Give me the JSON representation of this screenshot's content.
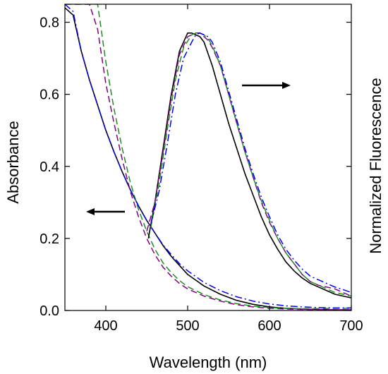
{
  "chart_data": {
    "type": "line",
    "title": "",
    "xlabel": "Wavelength (nm)",
    "ylabel": "Absorbance",
    "ylabel_right": "Normalized Fluorescence",
    "xlim": [
      350,
      700
    ],
    "ylim": [
      0,
      0.85
    ],
    "x_ticks": [
      400,
      500,
      600,
      700
    ],
    "x_tick_labels": [
      "400",
      "500",
      "600",
      "700"
    ],
    "y_ticks": [
      0.0,
      0.2,
      0.4,
      0.6,
      0.8
    ],
    "y_tick_labels": [
      "0.0",
      "0.2",
      "0.4",
      "0.6",
      "0.8"
    ],
    "grid": false,
    "legend": "none",
    "annotations": [
      {
        "type": "arrow",
        "direction": "left",
        "meaning": "absorbance curves refer to left axis"
      },
      {
        "type": "arrow",
        "direction": "right",
        "meaning": "fluorescence curves refer to right axis"
      }
    ],
    "series": [
      {
        "group": "absorbance",
        "color": "#000000",
        "dash": "solid",
        "x": [
          350,
          360,
          370,
          380,
          390,
          400,
          410,
          420,
          430,
          440,
          450,
          460,
          470,
          480,
          490,
          500,
          520,
          540,
          560,
          580,
          600,
          620,
          640,
          660,
          680,
          700
        ],
        "y": [
          0.84,
          0.82,
          0.72,
          0.64,
          0.57,
          0.5,
          0.44,
          0.385,
          0.335,
          0.29,
          0.25,
          0.215,
          0.18,
          0.15,
          0.125,
          0.1,
          0.068,
          0.045,
          0.028,
          0.017,
          0.01,
          0.006,
          0.004,
          0.003,
          0.002,
          0.002
        ]
      },
      {
        "group": "absorbance",
        "color": "#800080",
        "dash": "dashed",
        "x": [
          350,
          360,
          370,
          380,
          390,
          400,
          410,
          420,
          430,
          440,
          450,
          460,
          470,
          480,
          490,
          500,
          520,
          540,
          560,
          580,
          600,
          620,
          640,
          660,
          680,
          700
        ],
        "y": [
          0.85,
          0.85,
          0.85,
          0.85,
          0.78,
          0.63,
          0.52,
          0.42,
          0.33,
          0.26,
          0.2,
          0.155,
          0.12,
          0.095,
          0.075,
          0.06,
          0.04,
          0.026,
          0.016,
          0.01,
          0.006,
          0.004,
          0.003,
          0.002,
          0.002,
          0.002
        ]
      },
      {
        "group": "absorbance",
        "color": "#228B22",
        "dash": "dashed",
        "x": [
          350,
          360,
          370,
          380,
          390,
          400,
          410,
          420,
          430,
          440,
          450,
          460,
          470,
          480,
          490,
          500,
          520,
          540,
          560,
          580,
          600,
          620,
          640,
          660,
          680,
          700
        ],
        "y": [
          0.85,
          0.85,
          0.85,
          0.85,
          0.85,
          0.69,
          0.56,
          0.45,
          0.355,
          0.28,
          0.22,
          0.17,
          0.132,
          0.105,
          0.083,
          0.066,
          0.044,
          0.029,
          0.019,
          0.012,
          0.008,
          0.006,
          0.005,
          0.005,
          0.006,
          0.006
        ]
      },
      {
        "group": "absorbance",
        "color": "#0000EE",
        "dash": "dashdot",
        "x": [
          350,
          360,
          370,
          380,
          390,
          400,
          410,
          420,
          430,
          440,
          450,
          460,
          470,
          480,
          490,
          500,
          520,
          540,
          560,
          580,
          600,
          620,
          640,
          660,
          680,
          700
        ],
        "y": [
          0.85,
          0.83,
          0.72,
          0.64,
          0.57,
          0.5,
          0.44,
          0.385,
          0.335,
          0.29,
          0.25,
          0.215,
          0.182,
          0.155,
          0.13,
          0.11,
          0.078,
          0.055,
          0.038,
          0.026,
          0.018,
          0.013,
          0.01,
          0.008,
          0.007,
          0.007
        ]
      },
      {
        "group": "fluorescence",
        "color": "#000000",
        "dash": "solid",
        "x": [
          452,
          460,
          470,
          480,
          490,
          500,
          505,
          510,
          515,
          520,
          530,
          540,
          550,
          560,
          570,
          580,
          590,
          600,
          610,
          620,
          630,
          640,
          650,
          660,
          670,
          680,
          690,
          700
        ],
        "y": [
          0.2,
          0.3,
          0.45,
          0.6,
          0.72,
          0.77,
          0.77,
          0.765,
          0.76,
          0.745,
          0.68,
          0.6,
          0.52,
          0.45,
          0.38,
          0.32,
          0.26,
          0.21,
          0.17,
          0.135,
          0.11,
          0.09,
          0.075,
          0.065,
          0.055,
          0.045,
          0.04,
          0.035
        ]
      },
      {
        "group": "fluorescence",
        "color": "#800080",
        "dash": "dashed",
        "x": [
          450,
          460,
          470,
          480,
          490,
          500,
          510,
          515,
          520,
          525,
          530,
          540,
          550,
          560,
          570,
          580,
          590,
          600,
          610,
          620,
          630,
          640,
          650,
          660,
          670,
          680,
          690,
          700
        ],
        "y": [
          0.22,
          0.3,
          0.44,
          0.59,
          0.71,
          0.76,
          0.77,
          0.77,
          0.76,
          0.75,
          0.73,
          0.68,
          0.6,
          0.52,
          0.44,
          0.37,
          0.3,
          0.245,
          0.2,
          0.16,
          0.13,
          0.1,
          0.08,
          0.07,
          0.065,
          0.06,
          0.05,
          0.04
        ]
      },
      {
        "group": "fluorescence",
        "color": "#228B22",
        "dash": "dashed",
        "x": [
          455,
          465,
          475,
          485,
          495,
          505,
          510,
          515,
          520,
          525,
          530,
          540,
          550,
          560,
          570,
          580,
          590,
          600,
          610,
          620,
          630,
          640,
          650,
          660,
          670,
          680,
          690,
          700
        ],
        "y": [
          0.23,
          0.35,
          0.5,
          0.64,
          0.73,
          0.765,
          0.77,
          0.77,
          0.765,
          0.755,
          0.735,
          0.68,
          0.6,
          0.52,
          0.44,
          0.37,
          0.305,
          0.25,
          0.2,
          0.16,
          0.13,
          0.1,
          0.08,
          0.07,
          0.06,
          0.05,
          0.045,
          0.04
        ]
      },
      {
        "group": "fluorescence",
        "color": "#0000EE",
        "dash": "dashdot",
        "x": [
          455,
          465,
          475,
          485,
          495,
          505,
          510,
          515,
          520,
          525,
          530,
          540,
          550,
          560,
          570,
          580,
          590,
          600,
          610,
          620,
          630,
          640,
          650,
          660,
          670,
          680,
          690,
          700
        ],
        "y": [
          0.24,
          0.33,
          0.46,
          0.6,
          0.7,
          0.745,
          0.765,
          0.77,
          0.765,
          0.76,
          0.745,
          0.69,
          0.61,
          0.53,
          0.45,
          0.38,
          0.315,
          0.26,
          0.21,
          0.17,
          0.14,
          0.115,
          0.095,
          0.085,
          0.075,
          0.065,
          0.058,
          0.05
        ]
      }
    ]
  }
}
